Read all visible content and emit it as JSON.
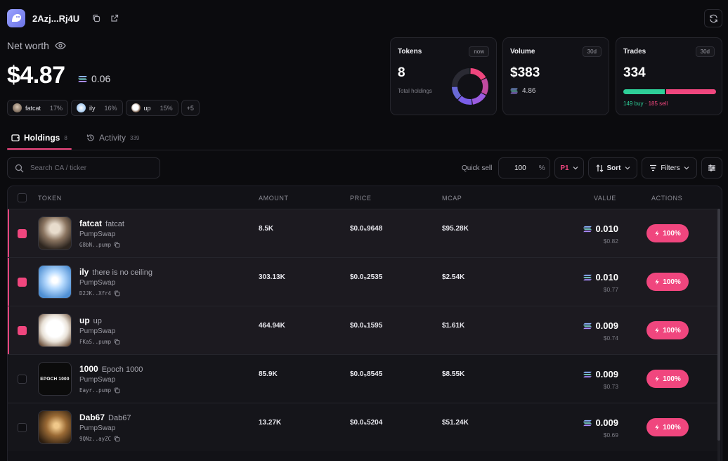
{
  "wallet": {
    "address": "2Azj...Rj4U"
  },
  "networth": {
    "label": "Net worth",
    "value": "$4.87",
    "sol": "0.06"
  },
  "chips": [
    {
      "name": "fatcat",
      "pct": "17%",
      "color": "#8a7a6a"
    },
    {
      "name": "ily",
      "pct": "16%",
      "color": "#bcd8f5"
    },
    {
      "name": "up",
      "pct": "15%",
      "color": "#e8e8e8"
    },
    {
      "name": "+5"
    }
  ],
  "cards": {
    "tokens": {
      "title": "Tokens",
      "badge": "now",
      "value": "8",
      "sub": "Total holdings"
    },
    "volume": {
      "title": "Volume",
      "badge": "30d",
      "value": "$383",
      "sol": "4.86"
    },
    "trades": {
      "title": "Trades",
      "badge": "30d",
      "value": "334",
      "buy_text": "149 buy",
      "sep": " · ",
      "sell_text": "185 sell",
      "buy": 149,
      "sell": 185
    }
  },
  "donut_segments": [
    {
      "value": 17,
      "color": "#f0467e"
    },
    {
      "value": 16,
      "color": "#c04aa0"
    },
    {
      "value": 15,
      "color": "#9b5be0"
    },
    {
      "value": 14,
      "color": "#7a5ee8"
    },
    {
      "value": 13,
      "color": "#6a6ad6"
    },
    {
      "value": 25,
      "color": "#2a2a33"
    }
  ],
  "tabs": [
    {
      "label": "Holdings",
      "count": "8"
    },
    {
      "label": "Activity",
      "count": "339"
    }
  ],
  "toolbar": {
    "search_placeholder": "Search CA / ticker",
    "quick_sell_label": "Quick sell",
    "quick_sell_value": "100",
    "quick_sell_unit": "%",
    "preset": "P1",
    "sort_label": "Sort",
    "filters_label": "Filters"
  },
  "table": {
    "headers": {
      "token": "TOKEN",
      "amount": "AMOUNT",
      "price": "PRICE",
      "mcap": "MCAP",
      "value": "VALUE",
      "actions": "ACTIONS"
    },
    "sell_label": "100%",
    "rows": [
      {
        "symbol": "fatcat",
        "name": "fatcat",
        "dex": "PumpSwap",
        "ca": "G8bN..pump",
        "amount": "8.5K",
        "price": "$0.0₅9648",
        "mcap": "$95.28K",
        "value": "0.010",
        "usd": "$0.82",
        "selected": true,
        "thumb": "fatcat"
      },
      {
        "symbol": "ily",
        "name": "there is no ceiling",
        "dex": "PumpSwap",
        "ca": "D2JK..Xfr4",
        "amount": "303.13K",
        "price": "$0.0₅2535",
        "mcap": "$2.54K",
        "value": "0.010",
        "usd": "$0.77",
        "selected": true,
        "thumb": "ily"
      },
      {
        "symbol": "up",
        "name": "up",
        "dex": "PumpSwap",
        "ca": "FKaS..pump",
        "amount": "464.94K",
        "price": "$0.0₅1595",
        "mcap": "$1.61K",
        "value": "0.009",
        "usd": "$0.74",
        "selected": true,
        "thumb": "up"
      },
      {
        "symbol": "1000",
        "name": "Epoch 1000",
        "dex": "PumpSwap",
        "ca": "Eayr..pump",
        "amount": "85.9K",
        "price": "$0.0₅8545",
        "mcap": "$8.55K",
        "value": "0.009",
        "usd": "$0.73",
        "selected": false,
        "thumb": "epoch",
        "thumb_text": "EPOCH 1000"
      },
      {
        "symbol": "Dab67",
        "name": "Dab67",
        "dex": "PumpSwap",
        "ca": "9QNz..ayZC",
        "amount": "13.27K",
        "price": "$0.0₅5204",
        "mcap": "$51.24K",
        "value": "0.009",
        "usd": "$0.69",
        "selected": false,
        "thumb": "dab"
      }
    ]
  }
}
